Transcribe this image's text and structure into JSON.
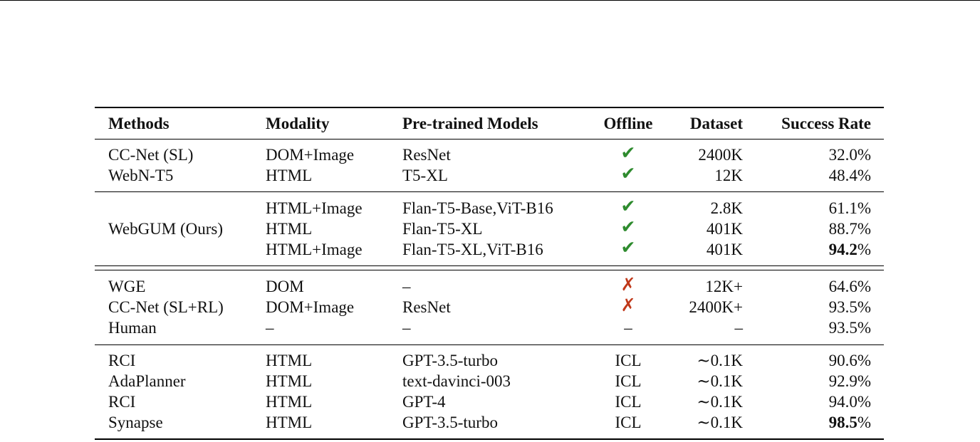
{
  "headers": {
    "methods": "Methods",
    "modality": "Modality",
    "models": "Pre-trained Models",
    "offline": "Offline",
    "dataset": "Dataset",
    "success": "Success Rate"
  },
  "groups": [
    {
      "rows": [
        {
          "method": "CC-Net (SL)",
          "modality": "DOM+Image",
          "models": "ResNet",
          "offline": "check",
          "offline_text": "✔",
          "dataset": "2400K",
          "success": "32.0%",
          "bold": false
        },
        {
          "method": "WebN-T5",
          "modality": "HTML",
          "models": "T5-XL",
          "offline": "check",
          "offline_text": "✔",
          "dataset": "12K",
          "success": "48.4%",
          "bold": false
        }
      ]
    },
    {
      "group_method": "WebGUM (Ours)",
      "rows": [
        {
          "method": "",
          "modality": "HTML+Image",
          "models": "Flan-T5-Base,ViT-B16",
          "offline": "check",
          "offline_text": "✔",
          "dataset": "2.8K",
          "success": "61.1%",
          "bold": false
        },
        {
          "method": "",
          "modality": "HTML",
          "models": "Flan-T5-XL",
          "offline": "check",
          "offline_text": "✔",
          "dataset": "401K",
          "success": "88.7%",
          "bold": false
        },
        {
          "method": "",
          "modality": "HTML+Image",
          "models": "Flan-T5-XL,ViT-B16",
          "offline": "check",
          "offline_text": "✔",
          "dataset": "401K",
          "success_num": "94.2",
          "success_pct": "%",
          "bold": true
        }
      ]
    },
    {
      "rows": [
        {
          "method": "WGE",
          "modality": "DOM",
          "models": "–",
          "offline": "cross",
          "offline_text": "✗",
          "dataset": "12K+",
          "success": "64.6%",
          "bold": false
        },
        {
          "method": "CC-Net (SL+RL)",
          "modality": "DOM+Image",
          "models": "ResNet",
          "offline": "cross",
          "offline_text": "✗",
          "dataset": "2400K+",
          "success": "93.5%",
          "bold": false
        },
        {
          "method": "Human",
          "modality": "–",
          "models": "–",
          "offline": "text",
          "offline_text": "–",
          "dataset": "–",
          "success": "93.5%",
          "bold": false
        }
      ]
    },
    {
      "rows": [
        {
          "method": "RCI",
          "modality": "HTML",
          "models": "GPT-3.5-turbo",
          "offline": "text",
          "offline_text": "ICL",
          "dataset": "∼0.1K",
          "success": "90.6%",
          "bold": false
        },
        {
          "method": "AdaPlanner",
          "modality": "HTML",
          "models": "text-davinci-003",
          "offline": "text",
          "offline_text": "ICL",
          "dataset": "∼0.1K",
          "success": "92.9%",
          "bold": false
        },
        {
          "method": "RCI",
          "modality": "HTML",
          "models": "GPT-4",
          "offline": "text",
          "offline_text": "ICL",
          "dataset": "∼0.1K",
          "success": "94.0%",
          "bold": false
        },
        {
          "method": "Synapse",
          "modality": "HTML",
          "models": "GPT-3.5-turbo",
          "offline": "text",
          "offline_text": "ICL",
          "dataset": "∼0.1K",
          "success_num": "98.5",
          "success_pct": "%",
          "bold": true
        }
      ]
    }
  ]
}
